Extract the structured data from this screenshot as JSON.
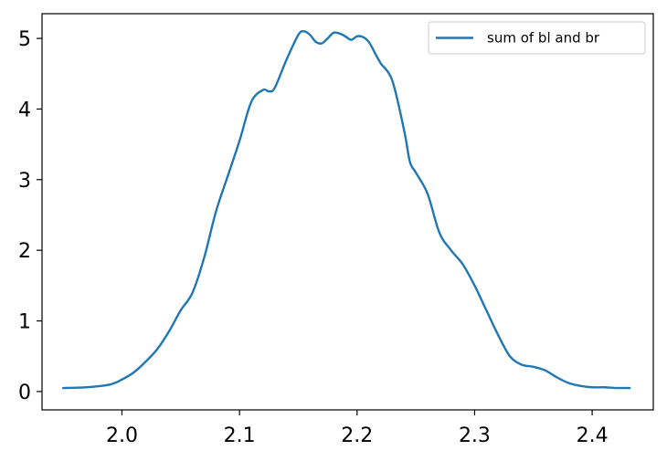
{
  "chart_data": {
    "type": "line",
    "title": "",
    "xlabel": "",
    "ylabel": "",
    "xlim": [
      1.932,
      2.452
    ],
    "ylim": [
      -0.26,
      5.35
    ],
    "xticks": [
      2.0,
      2.1,
      2.2,
      2.3,
      2.4
    ],
    "xtick_labels": [
      "2.0",
      "2.1",
      "2.2",
      "2.3",
      "2.4"
    ],
    "yticks": [
      0,
      1,
      2,
      3,
      4,
      5
    ],
    "ytick_labels": [
      "0",
      "1",
      "2",
      "3",
      "4",
      "5"
    ],
    "grid": false,
    "legend_position": "top-right",
    "series": [
      {
        "name": "sum of bl and br",
        "color": "#1f77b4",
        "x": [
          1.95,
          1.97,
          1.99,
          2.0,
          2.01,
          2.02,
          2.03,
          2.04,
          2.05,
          2.06,
          2.07,
          2.08,
          2.09,
          2.1,
          2.11,
          2.12,
          2.125,
          2.13,
          2.14,
          2.15,
          2.155,
          2.16,
          2.165,
          2.17,
          2.175,
          2.18,
          2.185,
          2.19,
          2.195,
          2.2,
          2.205,
          2.21,
          2.215,
          2.22,
          2.23,
          2.24,
          2.245,
          2.25,
          2.26,
          2.27,
          2.28,
          2.29,
          2.3,
          2.31,
          2.32,
          2.33,
          2.34,
          2.35,
          2.36,
          2.37,
          2.38,
          2.39,
          2.4,
          2.41,
          2.42,
          2.432
        ],
        "y": [
          0.05,
          0.06,
          0.1,
          0.17,
          0.27,
          0.42,
          0.6,
          0.85,
          1.15,
          1.4,
          1.9,
          2.55,
          3.05,
          3.55,
          4.1,
          4.27,
          4.25,
          4.3,
          4.7,
          5.05,
          5.1,
          5.05,
          4.95,
          4.93,
          5.0,
          5.08,
          5.07,
          5.03,
          4.98,
          5.03,
          5.02,
          4.95,
          4.8,
          4.65,
          4.4,
          3.7,
          3.25,
          3.1,
          2.8,
          2.25,
          2.0,
          1.8,
          1.5,
          1.15,
          0.8,
          0.5,
          0.38,
          0.35,
          0.3,
          0.2,
          0.12,
          0.08,
          0.06,
          0.06,
          0.05,
          0.05
        ]
      }
    ]
  }
}
